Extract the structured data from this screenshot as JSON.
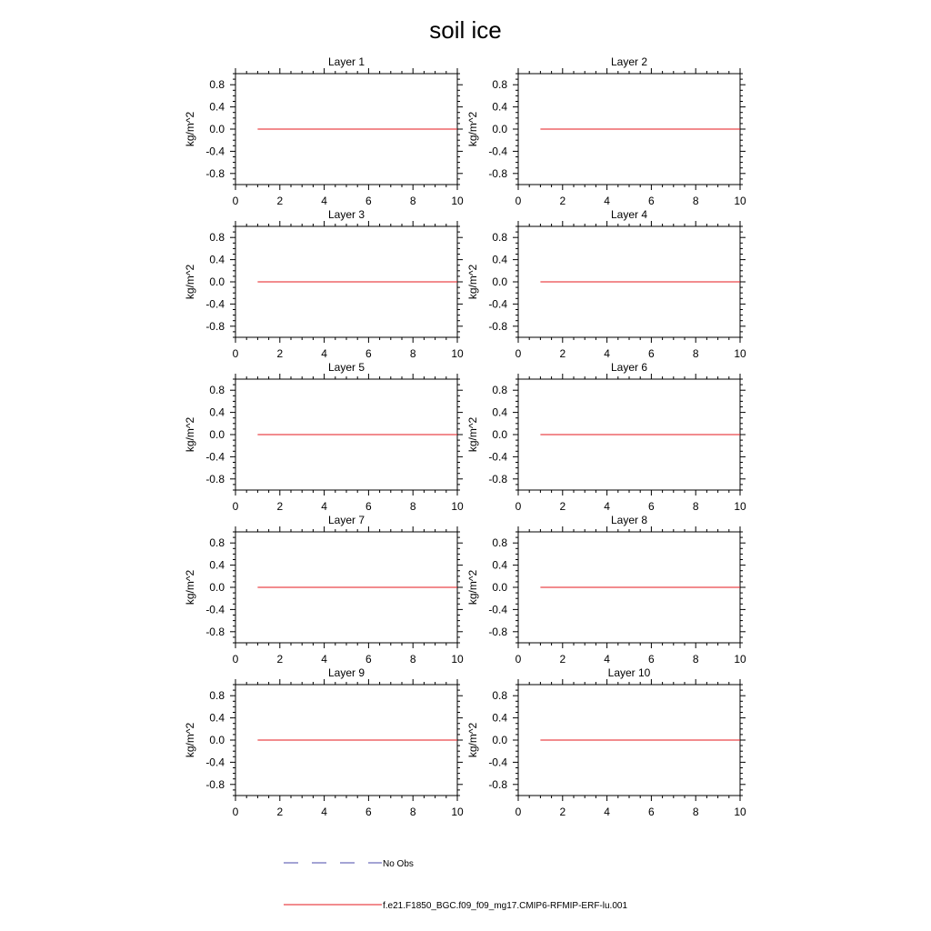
{
  "figure": {
    "title": "soil ice"
  },
  "chart_data": [
    {
      "type": "line",
      "title": "Layer 1",
      "ylabel": "kg/m^2",
      "xlim": [
        0,
        10
      ],
      "ylim": [
        -1.0,
        1.0
      ],
      "xticks": [
        0,
        2,
        4,
        6,
        8,
        10
      ],
      "yticks": [
        -0.8,
        -0.4,
        0.0,
        0.4,
        0.8
      ],
      "series": [
        {
          "name": "f.e21.F1850_BGC.f09_f09_mg17.CMIP6-RFMIP-ERF-lu.001",
          "color": "#e41a1c",
          "x": [
            1,
            10
          ],
          "y": [
            0.0,
            0.0
          ]
        }
      ]
    },
    {
      "type": "line",
      "title": "Layer 2",
      "ylabel": "kg/m^2",
      "xlim": [
        0,
        10
      ],
      "ylim": [
        -1.0,
        1.0
      ],
      "xticks": [
        0,
        2,
        4,
        6,
        8,
        10
      ],
      "yticks": [
        -0.8,
        -0.4,
        0.0,
        0.4,
        0.8
      ],
      "series": [
        {
          "name": "f.e21.F1850_BGC.f09_f09_mg17.CMIP6-RFMIP-ERF-lu.001",
          "color": "#e41a1c",
          "x": [
            1,
            10
          ],
          "y": [
            0.0,
            0.0
          ]
        }
      ]
    },
    {
      "type": "line",
      "title": "Layer 3",
      "ylabel": "kg/m^2",
      "xlim": [
        0,
        10
      ],
      "ylim": [
        -1.0,
        1.0
      ],
      "xticks": [
        0,
        2,
        4,
        6,
        8,
        10
      ],
      "yticks": [
        -0.8,
        -0.4,
        0.0,
        0.4,
        0.8
      ],
      "series": [
        {
          "name": "f.e21.F1850_BGC.f09_f09_mg17.CMIP6-RFMIP-ERF-lu.001",
          "color": "#e41a1c",
          "x": [
            1,
            10
          ],
          "y": [
            0.0,
            0.0
          ]
        }
      ]
    },
    {
      "type": "line",
      "title": "Layer 4",
      "ylabel": "kg/m^2",
      "xlim": [
        0,
        10
      ],
      "ylim": [
        -1.0,
        1.0
      ],
      "xticks": [
        0,
        2,
        4,
        6,
        8,
        10
      ],
      "yticks": [
        -0.8,
        -0.4,
        0.0,
        0.4,
        0.8
      ],
      "series": [
        {
          "name": "f.e21.F1850_BGC.f09_f09_mg17.CMIP6-RFMIP-ERF-lu.001",
          "color": "#e41a1c",
          "x": [
            1,
            10
          ],
          "y": [
            0.0,
            0.0
          ]
        }
      ]
    },
    {
      "type": "line",
      "title": "Layer 5",
      "ylabel": "kg/m^2",
      "xlim": [
        0,
        10
      ],
      "ylim": [
        -1.0,
        1.0
      ],
      "xticks": [
        0,
        2,
        4,
        6,
        8,
        10
      ],
      "yticks": [
        -0.8,
        -0.4,
        0.0,
        0.4,
        0.8
      ],
      "series": [
        {
          "name": "f.e21.F1850_BGC.f09_f09_mg17.CMIP6-RFMIP-ERF-lu.001",
          "color": "#e41a1c",
          "x": [
            1,
            10
          ],
          "y": [
            0.0,
            0.0
          ]
        }
      ]
    },
    {
      "type": "line",
      "title": "Layer 6",
      "ylabel": "kg/m^2",
      "xlim": [
        0,
        10
      ],
      "ylim": [
        -1.0,
        1.0
      ],
      "xticks": [
        0,
        2,
        4,
        6,
        8,
        10
      ],
      "yticks": [
        -0.8,
        -0.4,
        0.0,
        0.4,
        0.8
      ],
      "series": [
        {
          "name": "f.e21.F1850_BGC.f09_f09_mg17.CMIP6-RFMIP-ERF-lu.001",
          "color": "#e41a1c",
          "x": [
            1,
            10
          ],
          "y": [
            0.0,
            0.0
          ]
        }
      ]
    },
    {
      "type": "line",
      "title": "Layer 7",
      "ylabel": "kg/m^2",
      "xlim": [
        0,
        10
      ],
      "ylim": [
        -1.0,
        1.0
      ],
      "xticks": [
        0,
        2,
        4,
        6,
        8,
        10
      ],
      "yticks": [
        -0.8,
        -0.4,
        0.0,
        0.4,
        0.8
      ],
      "series": [
        {
          "name": "f.e21.F1850_BGC.f09_f09_mg17.CMIP6-RFMIP-ERF-lu.001",
          "color": "#e41a1c",
          "x": [
            1,
            10
          ],
          "y": [
            0.0,
            0.0
          ]
        }
      ]
    },
    {
      "type": "line",
      "title": "Layer 8",
      "ylabel": "kg/m^2",
      "xlim": [
        0,
        10
      ],
      "ylim": [
        -1.0,
        1.0
      ],
      "xticks": [
        0,
        2,
        4,
        6,
        8,
        10
      ],
      "yticks": [
        -0.8,
        -0.4,
        0.0,
        0.4,
        0.8
      ],
      "series": [
        {
          "name": "f.e21.F1850_BGC.f09_f09_mg17.CMIP6-RFMIP-ERF-lu.001",
          "color": "#e41a1c",
          "x": [
            1,
            10
          ],
          "y": [
            0.0,
            0.0
          ]
        }
      ]
    },
    {
      "type": "line",
      "title": "Layer 9",
      "ylabel": "kg/m^2",
      "xlim": [
        0,
        10
      ],
      "ylim": [
        -1.0,
        1.0
      ],
      "xticks": [
        0,
        2,
        4,
        6,
        8,
        10
      ],
      "yticks": [
        -0.8,
        -0.4,
        0.0,
        0.4,
        0.8
      ],
      "series": [
        {
          "name": "f.e21.F1850_BGC.f09_f09_mg17.CMIP6-RFMIP-ERF-lu.001",
          "color": "#e41a1c",
          "x": [
            1,
            10
          ],
          "y": [
            0.0,
            0.0
          ]
        }
      ]
    },
    {
      "type": "line",
      "title": "Layer 10",
      "ylabel": "kg/m^2",
      "xlim": [
        0,
        10
      ],
      "ylim": [
        -1.0,
        1.0
      ],
      "xticks": [
        0,
        2,
        4,
        6,
        8,
        10
      ],
      "yticks": [
        -0.8,
        -0.4,
        0.0,
        0.4,
        0.8
      ],
      "series": [
        {
          "name": "f.e21.F1850_BGC.f09_f09_mg17.CMIP6-RFMIP-ERF-lu.001",
          "color": "#e41a1c",
          "x": [
            1,
            10
          ],
          "y": [
            0.0,
            0.0
          ]
        }
      ]
    }
  ],
  "legend": {
    "items": [
      {
        "label": "No Obs",
        "color": "#4a4aa8",
        "style": "dashed"
      },
      {
        "label": "f.e21.F1850_BGC.f09_f09_mg17.CMIP6-RFMIP-ERF-lu.001",
        "color": "#e41a1c",
        "style": "solid"
      }
    ]
  }
}
